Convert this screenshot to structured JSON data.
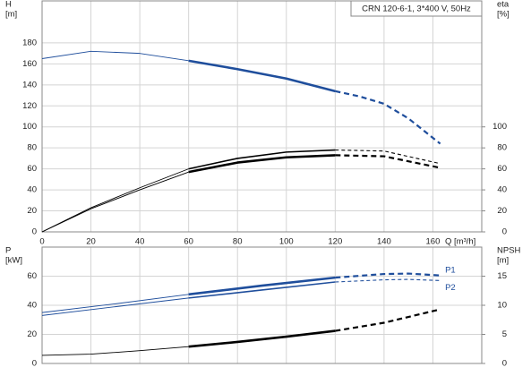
{
  "chart_data": [
    {
      "type": "line",
      "title": "CRN 120-6-1, 3*400 V, 50Hz",
      "ylabel": [
        "H",
        "[m]"
      ],
      "y2label": [
        "eta",
        "[%]"
      ],
      "xlabel": "Q [m³/h]",
      "xlim": [
        0,
        180
      ],
      "xticks": [
        0,
        20,
        40,
        60,
        80,
        100,
        120,
        140,
        160
      ],
      "xtick_labels": true,
      "ylim": [
        0,
        220
      ],
      "yticks": [
        0,
        20,
        40,
        60,
        80,
        100,
        120,
        140,
        160,
        180
      ],
      "y2lim": [
        0,
        220
      ],
      "y2ticks": [
        0,
        20,
        40,
        60,
        80,
        100
      ],
      "grid": true,
      "series": [
        {
          "color": "#1f4e9c",
          "style": "thin",
          "x": [
            0,
            20,
            40,
            60
          ],
          "values": [
            165,
            172,
            170,
            163
          ]
        },
        {
          "color": "#1f4e9c",
          "style": "thick",
          "x": [
            60,
            80,
            100,
            120
          ],
          "values": [
            163,
            155,
            146,
            134
          ]
        },
        {
          "color": "#1f4e9c",
          "style": "dashed",
          "x": [
            120,
            130,
            140,
            150,
            163
          ],
          "values": [
            134,
            129,
            122,
            108,
            84
          ]
        },
        {
          "color": "#000000",
          "style": "thin",
          "axis": "y2",
          "x": [
            0,
            20,
            40,
            60
          ],
          "values": [
            0,
            23,
            42,
            60
          ]
        },
        {
          "color": "#000000",
          "style": "mid",
          "axis": "y2",
          "x": [
            60,
            80,
            100,
            120
          ],
          "values": [
            60,
            70,
            76,
            78
          ]
        },
        {
          "color": "#000000",
          "style": "dashed-thin",
          "axis": "y2",
          "x": [
            120,
            140,
            163
          ],
          "values": [
            78,
            77,
            65
          ]
        },
        {
          "color": "#000000",
          "style": "thin",
          "axis": "y2",
          "x": [
            0,
            20,
            40,
            60
          ],
          "values": [
            0,
            22,
            40,
            57
          ]
        },
        {
          "color": "#000000",
          "style": "thick",
          "axis": "y2",
          "x": [
            60,
            80,
            100,
            120
          ],
          "values": [
            57,
            66,
            71,
            73
          ]
        },
        {
          "color": "#000000",
          "style": "dashed",
          "axis": "y2",
          "x": [
            120,
            140,
            163
          ],
          "values": [
            73,
            72,
            61
          ]
        }
      ]
    },
    {
      "type": "line",
      "ylabel": [
        "P",
        "[kW]"
      ],
      "y2label": [
        "NPSH",
        "[m]"
      ],
      "xlim": [
        0,
        180
      ],
      "xticks": [
        0,
        20,
        40,
        60,
        80,
        100,
        120,
        140,
        160
      ],
      "xtick_labels": false,
      "ylim": [
        0,
        80
      ],
      "yticks": [
        0,
        20,
        40,
        60
      ],
      "y2lim": [
        0,
        20
      ],
      "y2ticks": [
        0,
        5,
        10,
        15
      ],
      "grid": true,
      "annotations": [
        {
          "text": "P1",
          "x": 165,
          "y": 64
        },
        {
          "text": "P2",
          "x": 165,
          "y": 52
        }
      ],
      "series": [
        {
          "color": "#1f4e9c",
          "style": "thin",
          "x": [
            0,
            30,
            60
          ],
          "values": [
            35,
            41,
            47.5
          ]
        },
        {
          "color": "#1f4e9c",
          "style": "thick",
          "x": [
            60,
            90,
            120
          ],
          "values": [
            47.5,
            53.5,
            59
          ]
        },
        {
          "color": "#1f4e9c",
          "style": "dashed",
          "x": [
            120,
            140,
            150,
            163
          ],
          "values": [
            59,
            61.5,
            61.8,
            60.5
          ]
        },
        {
          "color": "#1f4e9c",
          "style": "thin",
          "x": [
            0,
            30,
            60
          ],
          "values": [
            33,
            39,
            45
          ]
        },
        {
          "color": "#1f4e9c",
          "style": "mid",
          "x": [
            60,
            90,
            120
          ],
          "values": [
            45,
            50.5,
            56
          ]
        },
        {
          "color": "#1f4e9c",
          "style": "dashed-thin",
          "x": [
            120,
            140,
            150,
            163
          ],
          "values": [
            56,
            57.5,
            57.8,
            57
          ]
        },
        {
          "color": "#000000",
          "style": "thin",
          "axis": "y2",
          "x": [
            0,
            20,
            40,
            60
          ],
          "values": [
            1.4,
            1.6,
            2.2,
            2.9
          ]
        },
        {
          "color": "#000000",
          "style": "thick",
          "axis": "y2",
          "x": [
            60,
            80,
            100,
            120
          ],
          "values": [
            2.9,
            3.7,
            4.6,
            5.6
          ]
        },
        {
          "color": "#000000",
          "style": "dashed",
          "axis": "y2",
          "x": [
            120,
            140,
            163
          ],
          "values": [
            5.6,
            7.0,
            9.3
          ]
        }
      ]
    }
  ]
}
